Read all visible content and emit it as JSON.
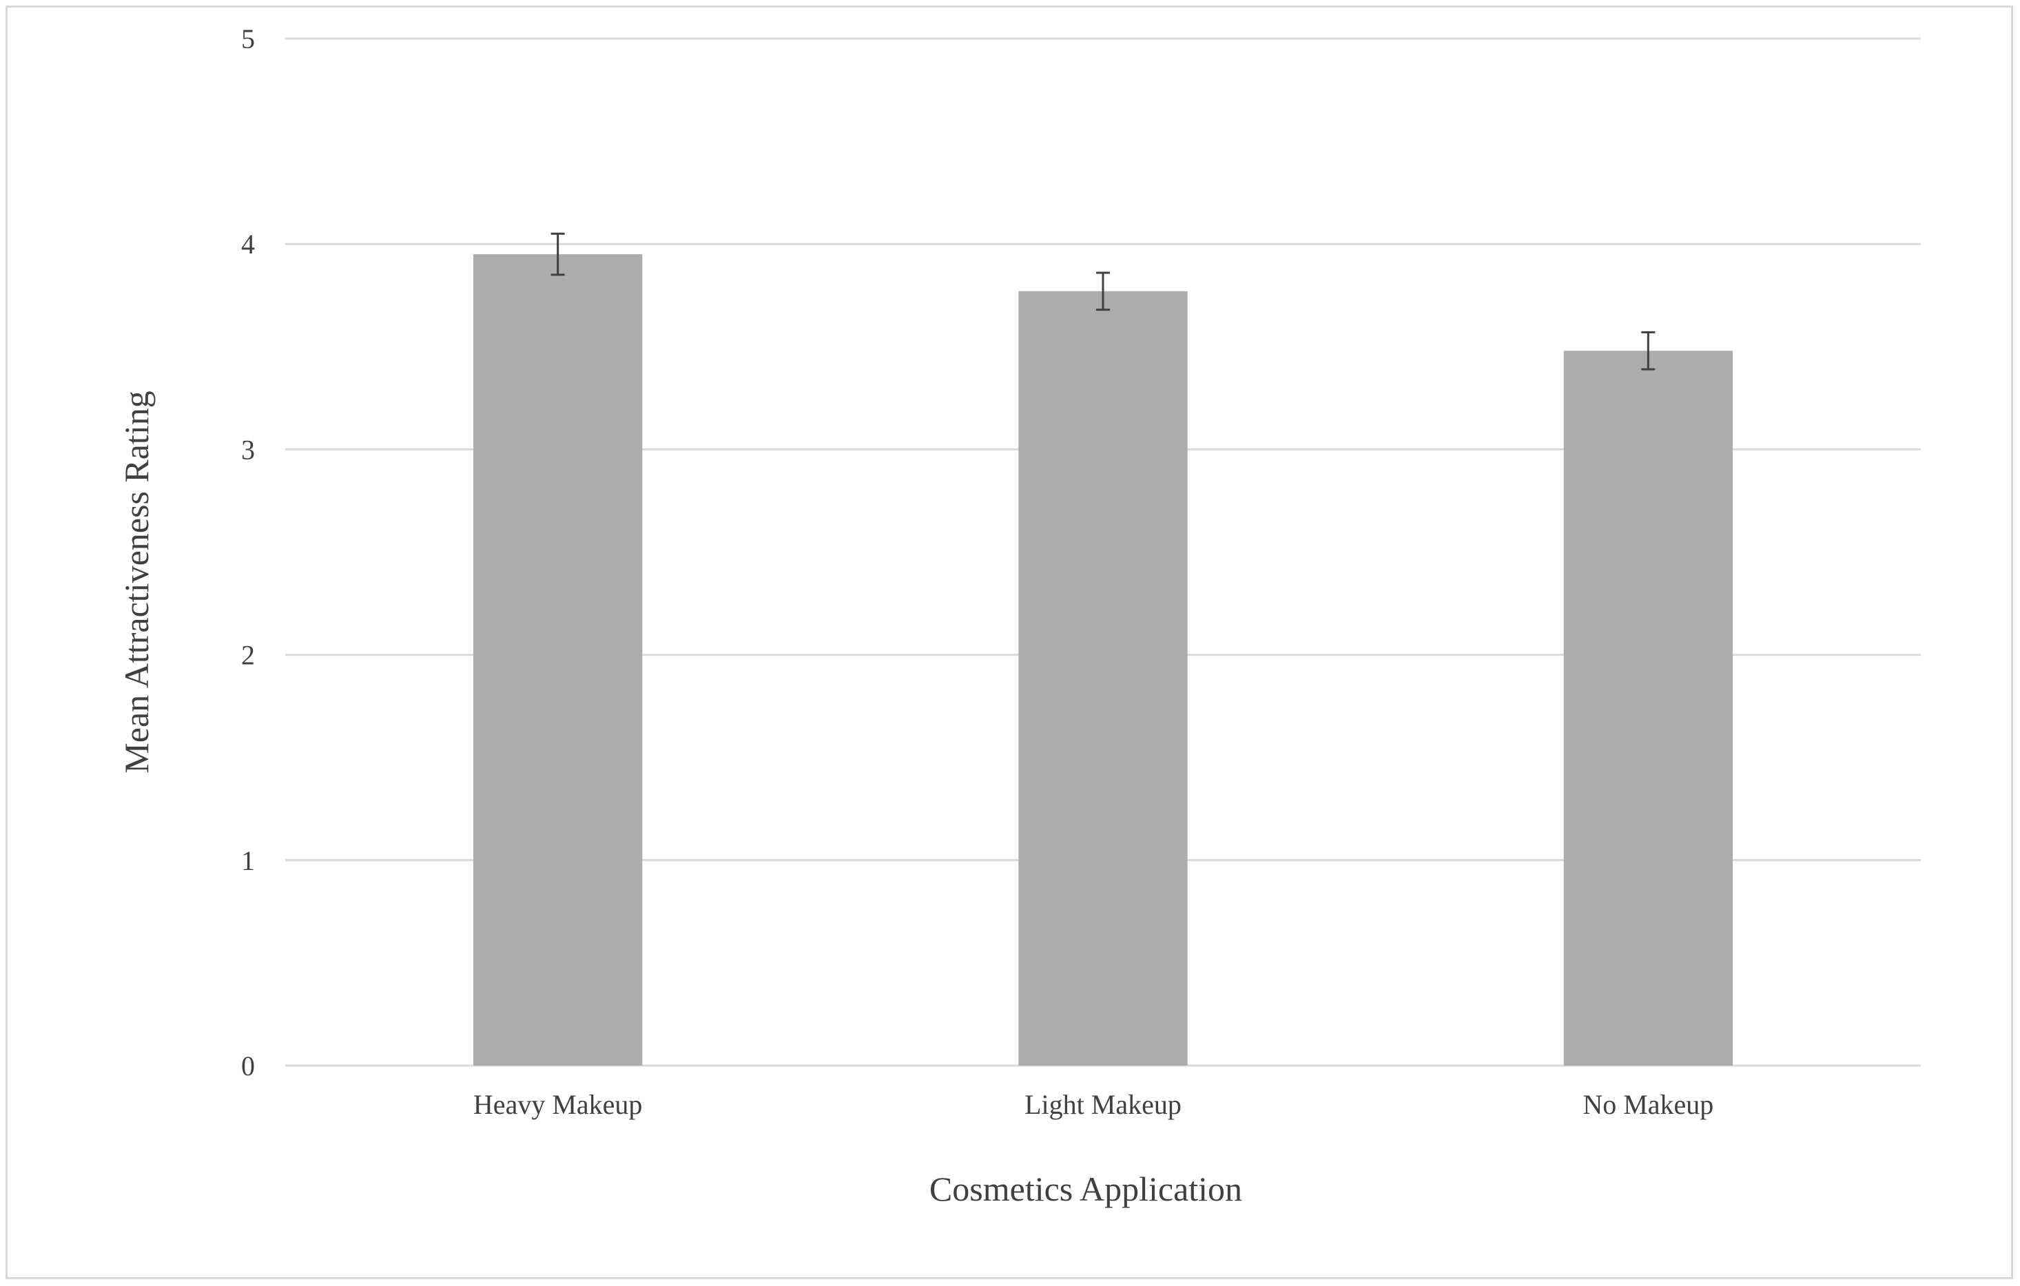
{
  "chart_data": {
    "type": "bar",
    "title": "",
    "xlabel": "Cosmetics Application",
    "ylabel": "Mean Attractiveness Rating",
    "categories": [
      "Heavy Makeup",
      "Light Makeup",
      "No Makeup"
    ],
    "values": [
      3.95,
      3.77,
      3.48
    ],
    "error": [
      0.1,
      0.09,
      0.09
    ],
    "ylim": [
      0,
      5
    ],
    "yticks": [
      "0",
      "1",
      "2",
      "3",
      "4",
      "5"
    ],
    "grid": true,
    "legend": "none",
    "colors": {
      "bar": "#adacac",
      "grid": "#d9d9d9",
      "error_bar": "#404040",
      "text": "#404040"
    }
  }
}
